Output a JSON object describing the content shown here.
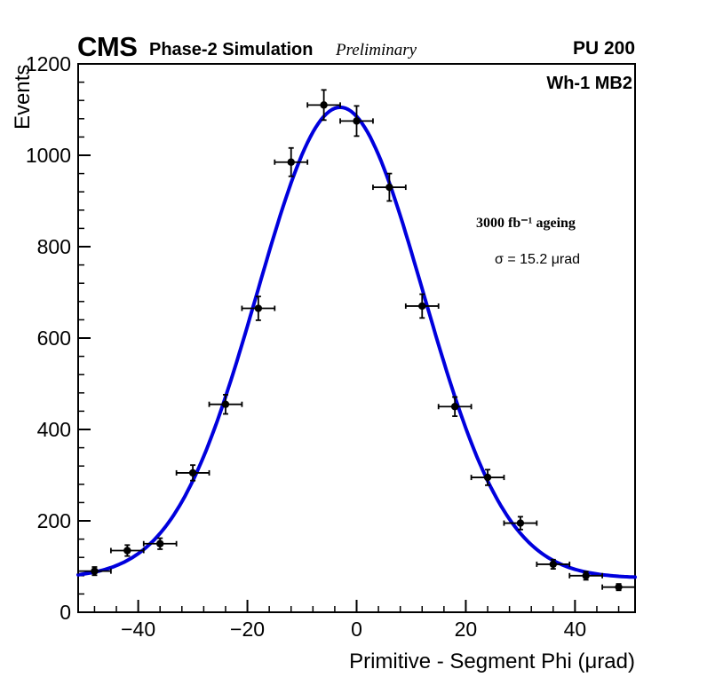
{
  "header": {
    "cms": "CMS",
    "subtitle": "Phase-2 Simulation",
    "preliminary": "Preliminary",
    "pileup": "PU 200"
  },
  "annotations": {
    "station": "Wh-1 MB2",
    "ageing": "3000 fb⁻¹ ageing",
    "sigma": "σ = 15.2 μrad"
  },
  "axes": {
    "x_tick_values": [
      -40,
      -20,
      0,
      20,
      40
    ],
    "x_tick_labels": [
      "−40",
      "−20",
      "0",
      "20",
      "40"
    ],
    "y_tick_values": [
      0,
      200,
      400,
      600,
      800,
      1000,
      1200
    ],
    "y_tick_labels": [
      "0",
      "200",
      "400",
      "600",
      "800",
      "1000",
      "1200"
    ],
    "x_minor_step": 4,
    "y_minor_step": 40
  },
  "chart_data": {
    "type": "scatter",
    "title": "",
    "xlabel": "Primitive - Segment Phi (μrad)",
    "ylabel": "Events",
    "xlim": [
      -51,
      51
    ],
    "ylim": [
      0,
      1200
    ],
    "x": [
      -48,
      -42,
      -36,
      -30,
      -24,
      -18,
      -12,
      -6,
      0,
      6,
      12,
      18,
      24,
      30,
      36,
      42,
      48
    ],
    "y": [
      90,
      135,
      150,
      305,
      455,
      665,
      985,
      1110,
      1075,
      930,
      670,
      450,
      295,
      195,
      105,
      80,
      55
    ],
    "x_err": 3,
    "y_err": [
      9,
      12,
      12,
      17,
      21,
      26,
      31,
      33,
      33,
      30,
      26,
      21,
      17,
      14,
      10,
      9,
      7
    ],
    "fit": {
      "shape": "gaussian",
      "mean": -3,
      "sigma": 15.2,
      "amplitude": 1030,
      "baseline": 75
    },
    "legend": "none",
    "grid": false,
    "colors": {
      "fit_line": "#0000dd",
      "marker": "#000000",
      "axis": "#000000",
      "background": "#ffffff"
    }
  }
}
